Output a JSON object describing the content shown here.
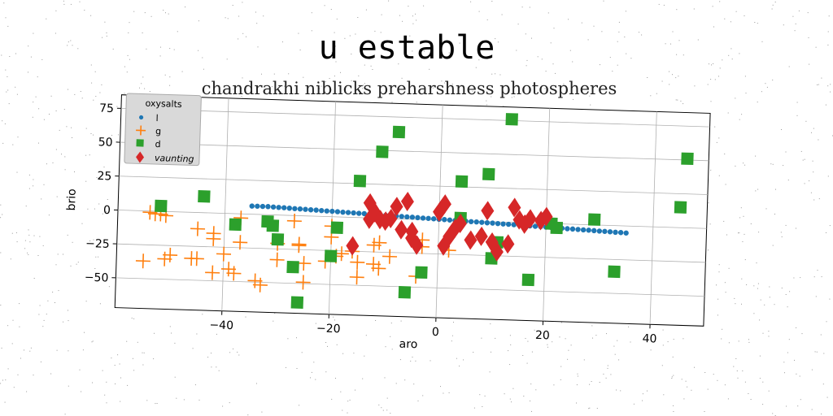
{
  "chart_data": {
    "type": "scatter",
    "title": "u estable",
    "subtitle": "chandrakhi niblicks preharshness photospheres",
    "xlabel": "aro",
    "ylabel": "brio",
    "xlim": [
      -60,
      50
    ],
    "ylim": [
      -72,
      85
    ],
    "xticks": [
      -40,
      -20,
      0,
      20,
      40
    ],
    "yticks": [
      75,
      50,
      25,
      0,
      -25,
      -50
    ],
    "grid": true,
    "legend": {
      "title": "oxysalts",
      "placement": "top-left",
      "entries": [
        "l",
        "g",
        "d",
        "vaunting"
      ]
    },
    "series": [
      {
        "name": "l",
        "marker": "circle",
        "color": "#1f77b4",
        "points": [
          [
            -35,
            6
          ],
          [
            -34,
            6
          ],
          [
            -33,
            6
          ],
          [
            -32,
            6
          ],
          [
            -31,
            5.8
          ],
          [
            -30,
            5.6
          ],
          [
            -29,
            5.5
          ],
          [
            -28,
            5.3
          ],
          [
            -27,
            5.1
          ],
          [
            -26,
            5
          ],
          [
            -25,
            4.8
          ],
          [
            -24,
            4.6
          ],
          [
            -23,
            4.5
          ],
          [
            -22,
            4.3
          ],
          [
            -21,
            4.1
          ],
          [
            -20,
            4
          ],
          [
            -19,
            3.8
          ],
          [
            -18,
            3.6
          ],
          [
            -17,
            3.5
          ],
          [
            -16,
            3.3
          ],
          [
            -15,
            3.1
          ],
          [
            -14,
            3
          ],
          [
            -13,
            2.8
          ],
          [
            -12,
            2.6
          ],
          [
            -11,
            2.5
          ],
          [
            -10,
            2.3
          ],
          [
            -9,
            2.1
          ],
          [
            -8,
            2
          ],
          [
            -7,
            1.8
          ],
          [
            -6,
            1.6
          ],
          [
            -5,
            1.5
          ],
          [
            -4,
            1.3
          ],
          [
            -3,
            1.1
          ],
          [
            -2,
            1
          ],
          [
            -1,
            0.8
          ],
          [
            0,
            0.6
          ],
          [
            1,
            0.5
          ],
          [
            2,
            0.3
          ],
          [
            3,
            0.1
          ],
          [
            4,
            0
          ],
          [
            5,
            -0.2
          ],
          [
            6,
            -0.4
          ],
          [
            7,
            -0.5
          ],
          [
            8,
            -0.7
          ],
          [
            9,
            -0.9
          ],
          [
            10,
            -1
          ],
          [
            11,
            -1.2
          ],
          [
            12,
            -1.4
          ],
          [
            13,
            -1.5
          ],
          [
            14,
            -1.7
          ],
          [
            15,
            -1.9
          ],
          [
            16,
            -2
          ],
          [
            17,
            -2.2
          ],
          [
            18,
            -2.4
          ],
          [
            19,
            -2.5
          ],
          [
            20,
            -2.7
          ],
          [
            21,
            -2.9
          ],
          [
            22,
            -3
          ],
          [
            23,
            -3.2
          ],
          [
            24,
            -3.4
          ],
          [
            25,
            -3.5
          ],
          [
            26,
            -3.7
          ],
          [
            27,
            -3.9
          ],
          [
            28,
            -4
          ],
          [
            29,
            -4.2
          ],
          [
            30,
            -4.4
          ],
          [
            31,
            -4.5
          ],
          [
            32,
            -4.7
          ],
          [
            33,
            -4.9
          ],
          [
            34,
            -5
          ],
          [
            35,
            -5.2
          ]
        ]
      },
      {
        "name": "g",
        "marker": "plus",
        "color": "#ff7f0e",
        "points": [
          [
            -54,
            -1
          ],
          [
            -53,
            -2
          ],
          [
            -52,
            -2
          ],
          [
            -51,
            -3
          ],
          [
            -55,
            -37
          ],
          [
            -51,
            -35
          ],
          [
            -50,
            -32
          ],
          [
            -46,
            -34
          ],
          [
            -45,
            -34
          ],
          [
            -45,
            -12
          ],
          [
            -42,
            -15
          ],
          [
            -42,
            -19
          ],
          [
            -42,
            -44
          ],
          [
            -40,
            -30
          ],
          [
            -39,
            -41
          ],
          [
            -38,
            -44
          ],
          [
            -37,
            -21
          ],
          [
            -37,
            -3
          ],
          [
            -34,
            -49
          ],
          [
            -33,
            -52
          ],
          [
            -30,
            -21
          ],
          [
            -30,
            -33
          ],
          [
            -27,
            -4
          ],
          [
            -26,
            -21
          ],
          [
            -26,
            -22
          ],
          [
            -25,
            -35
          ],
          [
            -25,
            -49
          ],
          [
            -21,
            -33
          ],
          [
            -20,
            -7
          ],
          [
            -20,
            -15
          ],
          [
            -19,
            -29
          ],
          [
            -18,
            -27
          ],
          [
            -16,
            -25
          ],
          [
            -15,
            -33
          ],
          [
            -15,
            -44
          ],
          [
            -12,
            -34
          ],
          [
            -12,
            -20
          ],
          [
            -11,
            -37
          ],
          [
            -11,
            -18
          ],
          [
            -9,
            -28
          ],
          [
            -3,
            -20
          ],
          [
            -3,
            -15
          ],
          [
            -4,
            -42
          ],
          [
            2,
            -22
          ]
        ]
      },
      {
        "name": "d",
        "marker": "square",
        "color": "#2ca02c",
        "points": [
          [
            -52,
            4
          ],
          [
            -44,
            12
          ],
          [
            -38,
            -8
          ],
          [
            -32,
            -5
          ],
          [
            -31,
            -8
          ],
          [
            -30,
            -18
          ],
          [
            -27,
            -38
          ],
          [
            -26,
            -64
          ],
          [
            -20,
            -29
          ],
          [
            -19,
            -8
          ],
          [
            -15,
            27
          ],
          [
            -11,
            49
          ],
          [
            -8,
            64
          ],
          [
            -6,
            -54
          ],
          [
            -3,
            -39
          ],
          [
            4,
            2
          ],
          [
            4,
            29
          ],
          [
            9,
            35
          ],
          [
            10,
            -27
          ],
          [
            11,
            -15
          ],
          [
            13,
            76
          ],
          [
            17,
            -42
          ],
          [
            21,
            0
          ],
          [
            22,
            -3
          ],
          [
            29,
            4
          ],
          [
            33,
            -34
          ],
          [
            45,
            15
          ],
          [
            46,
            51
          ]
        ]
      },
      {
        "name": "vaunting",
        "marker": "diamond",
        "color": "#d62728",
        "points": [
          [
            -16,
            -21
          ],
          [
            -13,
            11
          ],
          [
            -13,
            -1
          ],
          [
            -12,
            4
          ],
          [
            -11,
            -1
          ],
          [
            -10,
            -2
          ],
          [
            -9,
            0
          ],
          [
            -8,
            9
          ],
          [
            -7,
            -8
          ],
          [
            -6,
            13
          ],
          [
            -5,
            -14
          ],
          [
            -5,
            -9
          ],
          [
            -4,
            -19
          ],
          [
            0,
            6
          ],
          [
            1,
            12
          ],
          [
            1,
            -19
          ],
          [
            2,
            -12
          ],
          [
            3,
            -6
          ],
          [
            4,
            -2
          ],
          [
            6,
            -14
          ],
          [
            8,
            -11
          ],
          [
            9,
            8
          ],
          [
            10,
            -15
          ],
          [
            11,
            -22
          ],
          [
            13,
            -16
          ],
          [
            14,
            11
          ],
          [
            15,
            2
          ],
          [
            16,
            -1
          ],
          [
            17,
            3
          ],
          [
            19,
            2
          ],
          [
            20,
            5
          ]
        ]
      }
    ]
  }
}
